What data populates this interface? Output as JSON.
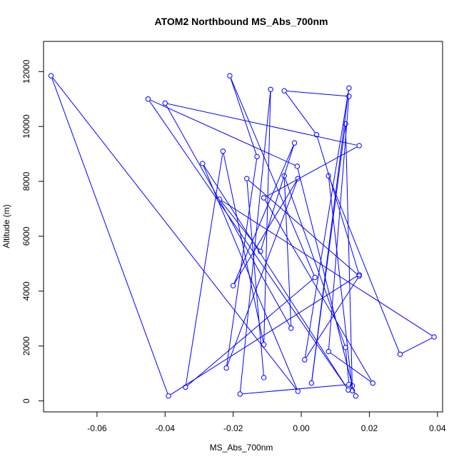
{
  "chart_data": {
    "type": "line",
    "title": "ATOM2 Northbound MS_Abs_700nm",
    "xlabel": "MS_Abs_700nm",
    "ylabel": "Altitude (m)",
    "xlim": [
      -0.0757,
      0.0415
    ],
    "ylim": [
      -400,
      13100
    ],
    "xticks": [
      -0.06,
      -0.04,
      -0.02,
      0.0,
      0.02,
      0.04
    ],
    "xtick_labels": [
      "-0.06",
      "-0.04",
      "-0.02",
      "0.00",
      "0.02",
      "0.04"
    ],
    "yticks": [
      0,
      2000,
      4000,
      6000,
      8000,
      10000,
      12000
    ],
    "ytick_labels": [
      "0",
      "2000",
      "4000",
      "6000",
      "8000",
      "10000",
      "12000"
    ],
    "grid": false,
    "marker": "open-circle",
    "colors": {
      "series": "#0000ff",
      "axes": "#000000"
    },
    "series": [
      {
        "points": [
          {
            "x": 0.016,
            "y": 180
          },
          {
            "x": 0.015,
            "y": 550
          },
          {
            "x": -0.0012,
            "y": 8550
          },
          {
            "x": -0.045,
            "y": 11000
          },
          {
            "x": 0.0138,
            "y": 400
          },
          {
            "x": -0.029,
            "y": 8650
          },
          {
            "x": -0.001,
            "y": 350
          },
          {
            "x": -0.0735,
            "y": 11850
          },
          {
            "x": -0.039,
            "y": 180
          },
          {
            "x": 0.017,
            "y": 4600
          },
          {
            "x": 0.0045,
            "y": 9700
          },
          {
            "x": -0.005,
            "y": 11300
          },
          {
            "x": 0.014,
            "y": 11100
          },
          {
            "x": 0.008,
            "y": 1800
          },
          {
            "x": 0.021,
            "y": 650
          },
          {
            "x": -0.011,
            "y": 7400
          },
          {
            "x": 0.017,
            "y": 9300
          },
          {
            "x": -0.04,
            "y": 10850
          },
          {
            "x": -0.003,
            "y": 2650
          },
          {
            "x": -0.005,
            "y": 8200
          },
          {
            "x": 0.013,
            "y": 1950
          },
          {
            "x": 0.014,
            "y": 600
          },
          {
            "x": -0.018,
            "y": 250
          },
          {
            "x": -0.009,
            "y": 11350
          },
          {
            "x": -0.011,
            "y": 2050
          },
          {
            "x": -0.023,
            "y": 9100
          },
          {
            "x": -0.034,
            "y": 500
          },
          {
            "x": 0.004,
            "y": 4500
          },
          {
            "x": -0.021,
            "y": 11850
          },
          {
            "x": -0.013,
            "y": 8900
          },
          {
            "x": -0.022,
            "y": 1200
          },
          {
            "x": -0.001,
            "y": 8100
          },
          {
            "x": -0.02,
            "y": 4200
          },
          {
            "x": -0.002,
            "y": 9400
          },
          {
            "x": -0.012,
            "y": 5450
          },
          {
            "x": -0.024,
            "y": 7350
          },
          {
            "x": 0.039,
            "y": 2330
          },
          {
            "x": 0.029,
            "y": 1700
          },
          {
            "x": 0.008,
            "y": 8200
          },
          {
            "x": 0.015,
            "y": 370
          },
          {
            "x": 0.013,
            "y": 10100
          },
          {
            "x": 0.003,
            "y": 650
          },
          {
            "x": 0.014,
            "y": 11400
          },
          {
            "x": 0.001,
            "y": 1500
          },
          {
            "x": 0.017,
            "y": 4550
          },
          {
            "x": -0.016,
            "y": 8100
          },
          {
            "x": -0.011,
            "y": 850
          }
        ]
      }
    ]
  }
}
